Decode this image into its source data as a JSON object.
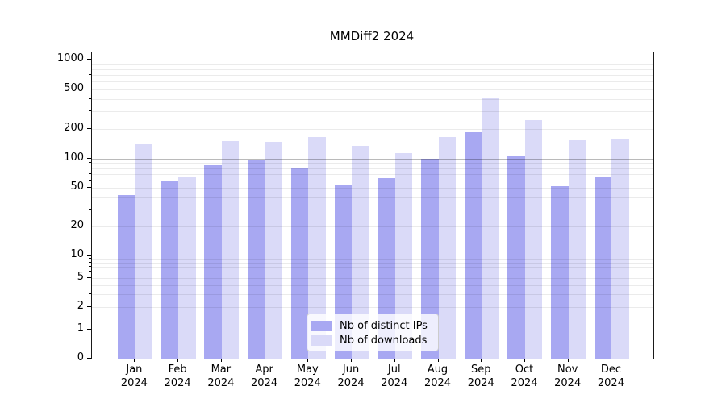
{
  "title": "MMDiff2 2024",
  "colors": {
    "distinct_ips": "#a8a8f2",
    "downloads": "#dadaf8",
    "grid_major": "rgba(0,0,0,0.27)",
    "grid_minor": "rgba(0,0,0,0.08)",
    "axis_spine": "#1a1a1a"
  },
  "chart_data": {
    "type": "bar",
    "title": "MMDiff2 2024",
    "categories": [
      "Jan 2024",
      "Feb 2024",
      "Mar 2024",
      "Apr 2024",
      "May 2024",
      "Jun 2024",
      "Jul 2024",
      "Aug 2024",
      "Sep 2024",
      "Oct 2024",
      "Nov 2024",
      "Dec 2024"
    ],
    "series": [
      {
        "name": "Nb of distinct IPs",
        "color": "#a8a8f2",
        "values": [
          42,
          58,
          85,
          96,
          81,
          53,
          63,
          100,
          185,
          106,
          52,
          66
        ]
      },
      {
        "name": "Nb of downloads",
        "color": "#dadaf8",
        "values": [
          140,
          66,
          150,
          148,
          165,
          135,
          115,
          165,
          405,
          245,
          155,
          157
        ]
      }
    ],
    "yscale": "symlog",
    "yticks": [
      0,
      1,
      2,
      5,
      10,
      20,
      50,
      100,
      200,
      500,
      1000
    ],
    "ylim": [
      0,
      1200
    ],
    "grid": true,
    "legend_position": "lower center"
  }
}
